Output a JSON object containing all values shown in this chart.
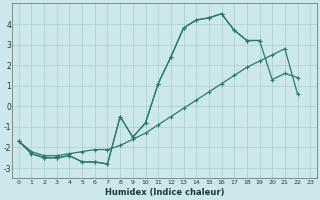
{
  "xlabel": "Humidex (Indice chaleur)",
  "bg_color": "#cce8ea",
  "grid_color": "#aacdd0",
  "line_color": "#2a7a6a",
  "xlim": [
    -0.5,
    23.5
  ],
  "ylim": [
    -3.5,
    5.0
  ],
  "xticks": [
    0,
    1,
    2,
    3,
    4,
    5,
    6,
    7,
    8,
    9,
    10,
    11,
    12,
    13,
    14,
    15,
    16,
    17,
    18,
    19,
    20,
    21,
    22,
    23
  ],
  "yticks": [
    -3,
    -2,
    -1,
    0,
    1,
    2,
    3,
    4
  ],
  "line1_x": [
    0,
    1,
    2,
    3,
    4,
    5,
    6,
    7,
    8,
    9,
    10,
    11,
    12,
    13,
    14,
    15,
    16,
    17,
    18,
    19
  ],
  "line1_y": [
    -1.7,
    -2.3,
    -2.5,
    -2.5,
    -2.4,
    -2.7,
    -2.7,
    -2.8,
    -0.5,
    -1.5,
    -0.8,
    1.1,
    2.4,
    3.8,
    4.2,
    4.3,
    4.5,
    3.7,
    3.2,
    3.2
  ],
  "line2_x": [
    0,
    1,
    2,
    3,
    4,
    5,
    6,
    7,
    8,
    9,
    10,
    11,
    12,
    13,
    14,
    15,
    16,
    17,
    18,
    19,
    20,
    21,
    22
  ],
  "line2_y": [
    -1.7,
    -2.3,
    -2.5,
    -2.5,
    -2.4,
    -2.7,
    -2.7,
    -2.8,
    -0.5,
    -1.5,
    -0.8,
    1.1,
    2.4,
    3.8,
    4.2,
    4.3,
    4.5,
    3.7,
    3.2,
    3.2,
    1.3,
    1.6,
    1.4
  ],
  "line3_x": [
    0,
    1,
    2,
    3,
    4,
    5,
    6,
    7,
    8,
    9,
    10,
    11,
    12,
    13,
    14,
    15,
    16,
    17,
    18,
    19,
    20,
    21,
    22
  ],
  "line3_y": [
    -1.7,
    -2.2,
    -2.4,
    -2.4,
    -2.3,
    -2.2,
    -2.1,
    -2.1,
    -1.9,
    -1.6,
    -1.3,
    -0.9,
    -0.5,
    -0.1,
    0.3,
    0.7,
    1.1,
    1.5,
    1.9,
    2.2,
    2.5,
    2.8,
    0.6
  ]
}
